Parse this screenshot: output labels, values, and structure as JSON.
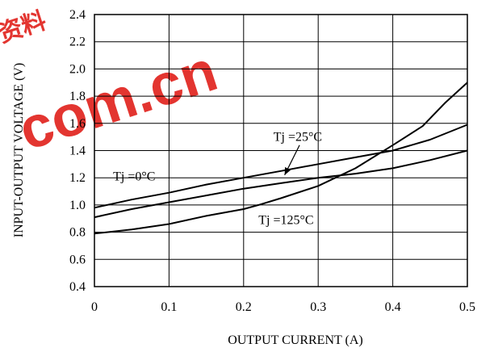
{
  "chart_data": {
    "type": "line",
    "title": "",
    "xlabel": "OUTPUT CURRENT (A)",
    "ylabel": "INPUT-OUTPUT VOLTAGE (V)",
    "xlim": [
      0,
      0.5
    ],
    "ylim": [
      0.4,
      2.4
    ],
    "x_ticks": [
      "0",
      "0.1",
      "0.2",
      "0.3",
      "0.4",
      "0.5"
    ],
    "y_ticks": [
      "0.4",
      "0.6",
      "0.8",
      "1.0",
      "1.2",
      "1.4",
      "1.6",
      "1.8",
      "2.0",
      "2.2",
      "2.4"
    ],
    "grid": true,
    "series": [
      {
        "name": "Tj =0°C",
        "x": [
          0,
          0.05,
          0.1,
          0.15,
          0.2,
          0.25,
          0.3,
          0.35,
          0.4,
          0.45,
          0.5
        ],
        "y": [
          0.98,
          1.04,
          1.09,
          1.15,
          1.2,
          1.25,
          1.3,
          1.35,
          1.4,
          1.48,
          1.59
        ]
      },
      {
        "name": "Tj =25°C",
        "x": [
          0,
          0.05,
          0.1,
          0.15,
          0.2,
          0.25,
          0.3,
          0.35,
          0.4,
          0.45,
          0.5
        ],
        "y": [
          0.91,
          0.97,
          1.02,
          1.07,
          1.12,
          1.16,
          1.2,
          1.23,
          1.27,
          1.33,
          1.4
        ]
      },
      {
        "name": "Tj =125°C",
        "x": [
          0,
          0.05,
          0.1,
          0.15,
          0.2,
          0.22,
          0.25,
          0.3,
          0.35,
          0.4,
          0.44,
          0.47,
          0.5
        ],
        "y": [
          0.79,
          0.82,
          0.86,
          0.92,
          0.97,
          1.0,
          1.05,
          1.14,
          1.27,
          1.44,
          1.58,
          1.75,
          1.9
        ]
      }
    ],
    "annotations": [
      {
        "text": "Tj =0°C",
        "x": 0.025,
        "y": 1.18
      },
      {
        "text": "Tj =25°C",
        "x": 0.24,
        "y": 1.47
      },
      {
        "text": "Tj =125°C",
        "x": 0.22,
        "y": 0.86
      }
    ]
  }
}
